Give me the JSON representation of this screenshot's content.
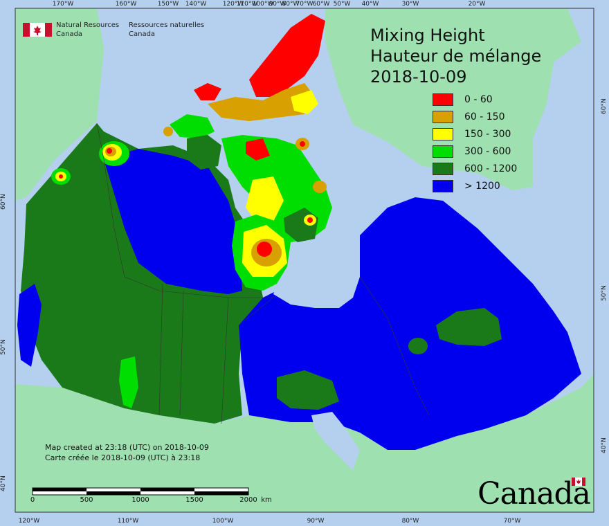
{
  "org": {
    "name_en_line1": "Natural Resources",
    "name_en_line2": "Canada",
    "name_fr_line1": "Ressources naturelles",
    "name_fr_line2": "Canada"
  },
  "title": {
    "line1": "Mixing Height",
    "line2": "Hauteur de mélange",
    "date": "2018-10-09"
  },
  "legend": [
    {
      "label": "0 - 60",
      "color": "#ff0000"
    },
    {
      "label": "60 - 150",
      "color": "#d8a000"
    },
    {
      "label": "150 - 300",
      "color": "#ffff00"
    },
    {
      "label": "300 - 600",
      "color": "#00dd00"
    },
    {
      "label": "600 - 1200",
      "color": "#1a7a1a"
    },
    {
      "label": "> 1200",
      "color": "#0000ee"
    }
  ],
  "credit": {
    "en": "Map created at 23:18 (UTC) on 2018-10-09",
    "fr": "Carte créée le 2018-10-09 (UTC) à 23:18"
  },
  "scalebar": {
    "labels": [
      "0",
      "500",
      "1000",
      "1500",
      "2000"
    ],
    "unit": "km"
  },
  "graticule": {
    "top": [
      "170°W",
      "160°W",
      "150°W",
      "140°W",
      "120°W",
      "110°W",
      "100°W",
      "90°W",
      "80°W",
      "70°W",
      "60°W",
      "50°W",
      "40°W",
      "30°W",
      "20°W"
    ],
    "bottom": [
      "120°W",
      "110°W",
      "100°W",
      "90°W",
      "80°W",
      "70°W"
    ],
    "left": [
      "60°N",
      "50°N",
      "40°N"
    ],
    "right": [
      "60°N",
      "50°N",
      "40°N"
    ]
  },
  "wordmark": "Canada",
  "colors": {
    "ocean": "#b4d0ee",
    "land_outside": "#9ee0b0",
    "border": "#333333"
  }
}
